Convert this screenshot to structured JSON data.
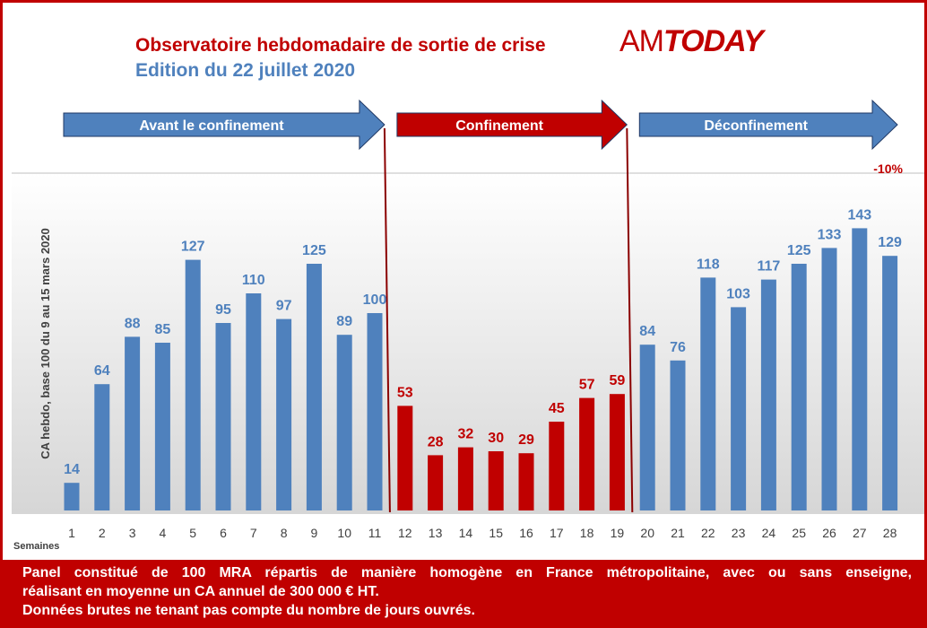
{
  "header": {
    "title": "Observatoire hebdomadaire de sortie de crise",
    "subtitle": "Edition du 22 juillet 2020",
    "logo_am": "AM",
    "logo_today": "TODAY"
  },
  "phases": [
    {
      "label": "Avant le confinement",
      "color": "#4f81bd",
      "from_week": 1,
      "to_week": 11
    },
    {
      "label": "Confinement",
      "color": "#c00000",
      "from_week": 12,
      "to_week": 19
    },
    {
      "label": "Déconfinement",
      "color": "#4f81bd",
      "from_week": 20,
      "to_week": 28
    }
  ],
  "chart_data": {
    "type": "bar",
    "title": "",
    "xlabel": "Semaines",
    "ylabel": "CA hebdo, base 100 du 9 au 15 mars 2020",
    "categories": [
      "1",
      "2",
      "3",
      "4",
      "5",
      "6",
      "7",
      "8",
      "9",
      "10",
      "11",
      "12",
      "13",
      "14",
      "15",
      "16",
      "17",
      "18",
      "19",
      "20",
      "21",
      "22",
      "23",
      "24",
      "25",
      "26",
      "27",
      "28"
    ],
    "values": [
      14,
      64,
      88,
      85,
      127,
      95,
      110,
      97,
      125,
      89,
      100,
      53,
      28,
      32,
      30,
      29,
      45,
      57,
      59,
      84,
      76,
      118,
      103,
      117,
      125,
      133,
      143,
      129
    ],
    "bar_colors": [
      "#4f81bd",
      "#4f81bd",
      "#4f81bd",
      "#4f81bd",
      "#4f81bd",
      "#4f81bd",
      "#4f81bd",
      "#4f81bd",
      "#4f81bd",
      "#4f81bd",
      "#4f81bd",
      "#c00000",
      "#c00000",
      "#c00000",
      "#c00000",
      "#c00000",
      "#c00000",
      "#c00000",
      "#c00000",
      "#4f81bd",
      "#4f81bd",
      "#4f81bd",
      "#4f81bd",
      "#4f81bd",
      "#4f81bd",
      "#4f81bd",
      "#4f81bd",
      "#4f81bd"
    ],
    "ylim": [
      0,
      150
    ],
    "grid": false,
    "annotations": [
      {
        "text": "-10%",
        "week": 28,
        "color": "#c00000"
      }
    ]
  },
  "colors": {
    "accent_red": "#c00000",
    "accent_blue": "#4f81bd"
  },
  "footer": {
    "line1": "Panel constitué de 100 MRA répartis de manière homogène en France métropolitaine, avec ou sans enseigne,",
    "line2": "réalisant en moyenne un CA annuel de 300 000 € HT.",
    "line3": "Données brutes ne tenant pas compte du nombre de jours ouvrés."
  }
}
